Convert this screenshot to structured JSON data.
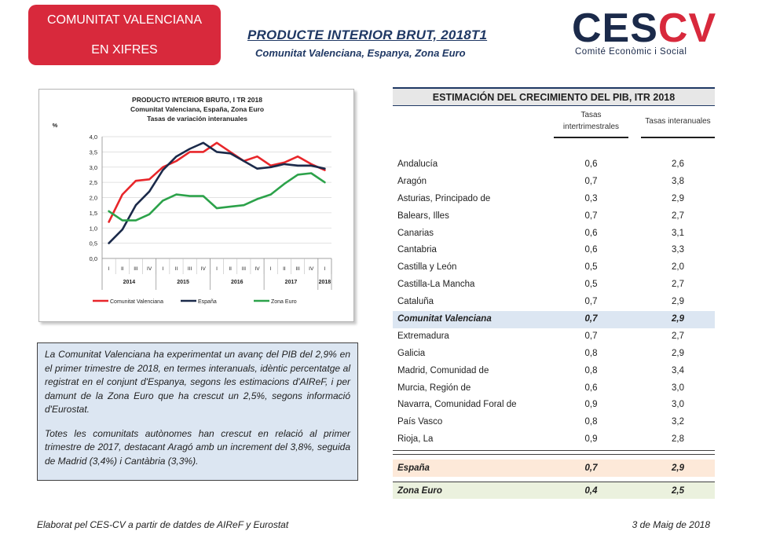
{
  "badge": {
    "line1": "COMUNITAT VALENCIANA",
    "line2": "EN XIFRES"
  },
  "header": {
    "title": "PRODUCTE INTERIOR BRUT,  2018T1",
    "subtitle": "Comunitat Valenciana, Espanya, Zona Euro"
  },
  "logo": {
    "part1": "CES",
    "part2": "CV",
    "tagline": "Comité Econòmic i Social"
  },
  "colors": {
    "badge": "#d8293c",
    "navy": "#1f3864",
    "cv_line": "#e8262a",
    "es_line": "#1b2a4a",
    "ze_line": "#2ca24a"
  },
  "chart_data": {
    "type": "line",
    "title": "PRODUCTO INTERIOR BRUTO, I TR 2018",
    "subtitle1": "Comunitat Valenciana, España, Zona Euro",
    "subtitle2": "Tasas de variación interanuales",
    "ylabel": "%",
    "ylim": [
      0,
      4
    ],
    "yticks": [
      "0,0",
      "0,5",
      "1,0",
      "1,5",
      "2,0",
      "2,5",
      "3,0",
      "3,5",
      "4,0"
    ],
    "quarters": [
      "I",
      "II",
      "III",
      "IV",
      "I",
      "II",
      "III",
      "IV",
      "I",
      "II",
      "III",
      "IV",
      "I",
      "II",
      "III",
      "IV",
      "I"
    ],
    "years": [
      "2014",
      "2015",
      "2016",
      "2017",
      "2018"
    ],
    "grid": true,
    "legend": "bottom",
    "series": [
      {
        "name": "Comunitat Valenciana",
        "color": "#e8262a",
        "values": [
          1.2,
          2.1,
          2.55,
          2.6,
          3.0,
          3.2,
          3.5,
          3.5,
          3.8,
          3.5,
          3.2,
          3.35,
          3.05,
          3.15,
          3.35,
          3.1,
          2.9
        ]
      },
      {
        "name": "España",
        "color": "#1b2a4a",
        "values": [
          0.5,
          0.95,
          1.75,
          2.2,
          2.9,
          3.35,
          3.6,
          3.8,
          3.5,
          3.45,
          3.2,
          2.95,
          3.0,
          3.1,
          3.05,
          3.05,
          2.95
        ]
      },
      {
        "name": "Zona Euro",
        "color": "#2ca24a",
        "values": [
          1.55,
          1.25,
          1.25,
          1.45,
          1.9,
          2.1,
          2.05,
          2.05,
          1.65,
          1.7,
          1.75,
          1.95,
          2.1,
          2.45,
          2.75,
          2.8,
          2.5
        ]
      }
    ]
  },
  "summary": {
    "p1": "La Comunitat Valenciana ha experimentat un avanç del PIB del 2,9% en el primer trimestre de 2018, en termes interanuals, idèntic percentatge al registrat en el conjunt d'Espanya, segons les estimacions d'AIReF, i per damunt de la Zona Euro que ha crescut un 2,5%, segons informació d'Eurostat.",
    "p2": "Totes les comunitats autònomes han crescut en relació al primer trimestre de 2017, destacant Aragó amb un increment del 3,8%, seguida de Madrid (3,4%) i Cantàbria (3,3%)."
  },
  "table": {
    "title": "ESTIMACIÓN DEL CRECIMIENTO DEL PIB, ITR 2018",
    "col1": "Tasas intertrimestrales",
    "col2": "Tasas interanuales",
    "rows": [
      {
        "name": "Andalucía",
        "q": "0,6",
        "y": "2,6"
      },
      {
        "name": "Aragón",
        "q": "0,7",
        "y": "3,8"
      },
      {
        "name": "Asturias, Principado de",
        "q": "0,3",
        "y": "2,9"
      },
      {
        "name": "Balears, Illes",
        "q": "0,7",
        "y": "2,7"
      },
      {
        "name": "Canarias",
        "q": "0,6",
        "y": "3,1"
      },
      {
        "name": "Cantabria",
        "q": "0,6",
        "y": "3,3"
      },
      {
        "name": "Castilla y León",
        "q": "0,5",
        "y": "2,0"
      },
      {
        "name": "Castilla-La Mancha",
        "q": "0,5",
        "y": "2,7"
      },
      {
        "name": "Cataluña",
        "q": "0,7",
        "y": "2,9"
      },
      {
        "name": "Comunitat Valenciana",
        "q": "0,7",
        "y": "2,9"
      },
      {
        "name": "Extremadura",
        "q": "0,7",
        "y": "2,7"
      },
      {
        "name": "Galicia",
        "q": "0,8",
        "y": "2,9"
      },
      {
        "name": "Madrid, Comunidad de",
        "q": "0,8",
        "y": "3,4"
      },
      {
        "name": "Murcia, Región de",
        "q": "0,6",
        "y": "3,0"
      },
      {
        "name": "Navarra, Comunidad Foral de",
        "q": "0,9",
        "y": "3,0"
      },
      {
        "name": "País Vasco",
        "q": "0,8",
        "y": "3,2"
      },
      {
        "name": "Rioja, La",
        "q": "0,9",
        "y": "2,8"
      }
    ],
    "spain": {
      "name": "España",
      "q": "0,7",
      "y": "2,9"
    },
    "euro": {
      "name": "Zona Euro",
      "q": "0,4",
      "y": "2,5"
    }
  },
  "footer": {
    "source": "Elaborat  pel CES-CV a partir de datdes de AIReF y Eurostat",
    "date": "3 de Maig de 2018"
  }
}
